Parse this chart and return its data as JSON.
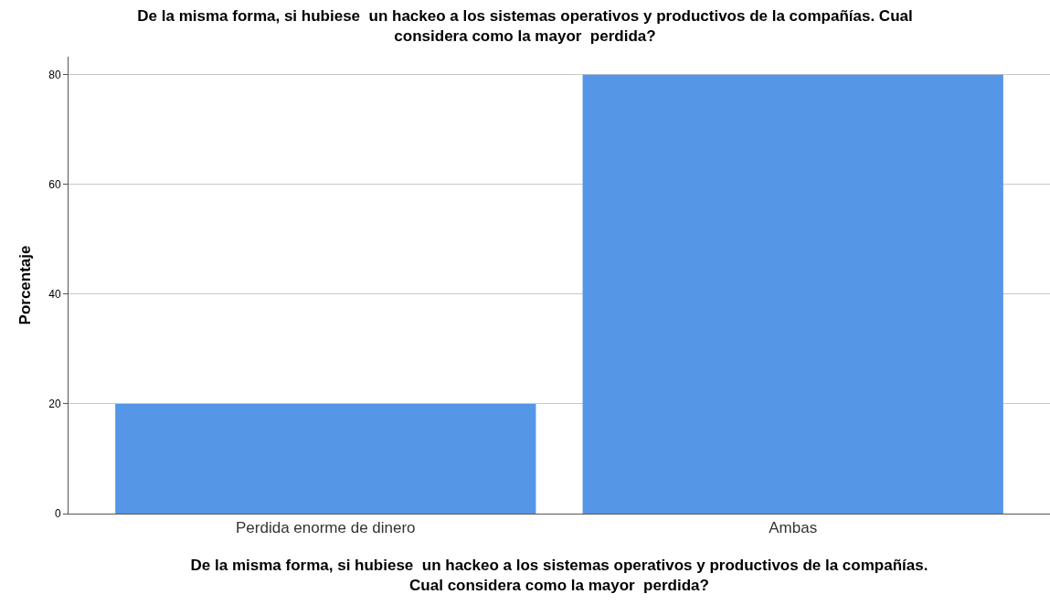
{
  "chart_data": {
    "type": "bar",
    "title": "De la misma forma, si hubiese  un hackeo a los sistemas operativos y productivos de la compañías. Cual\nconsidera como la mayor  perdida?",
    "xlabel": "De la misma forma, si hubiese  un hackeo a los sistemas operativos y productivos de la compañías.\nCual considera como la mayor  perdida?",
    "ylabel": "Porcentaje",
    "categories": [
      "Perdida enorme de dinero",
      "Ambas"
    ],
    "values": [
      20,
      80
    ],
    "color": "#5596e6",
    "ylim": [
      0,
      83.3
    ],
    "yticks": [
      0,
      20,
      40,
      60,
      80
    ],
    "grid": "y",
    "legend": false
  }
}
